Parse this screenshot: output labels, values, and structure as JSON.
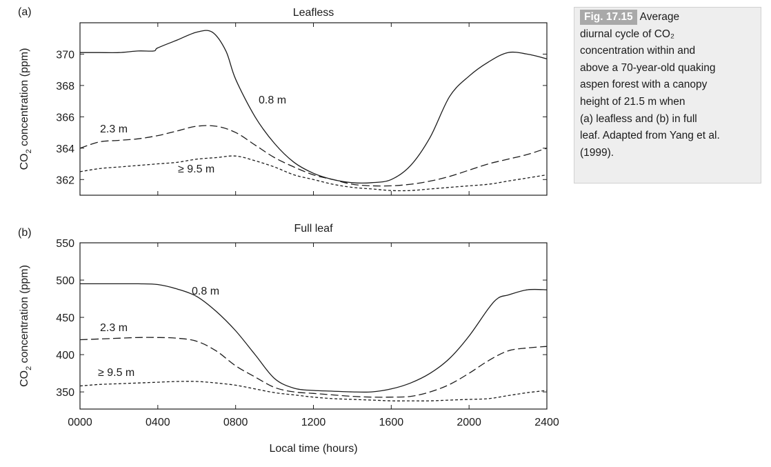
{
  "chart_data": [
    {
      "type": "line",
      "panel_label": "(a)",
      "title": "Leafless",
      "xlabel": "",
      "ylabel": "CO2 concentration (ppm)",
      "xlim": [
        0,
        2400
      ],
      "ylim": [
        361,
        372
      ],
      "yticks": [
        362,
        364,
        366,
        368,
        370
      ],
      "xticks": [
        0,
        400,
        800,
        1200,
        1600,
        2000,
        2400
      ],
      "series": [
        {
          "name": "0.8 m",
          "style": "solid",
          "x": [
            0,
            100,
            200,
            300,
            380,
            400,
            500,
            600,
            680,
            750,
            800,
            900,
            1000,
            1100,
            1200,
            1300,
            1400,
            1500,
            1600,
            1700,
            1800,
            1900,
            2000,
            2100,
            2200,
            2300,
            2400
          ],
          "y": [
            370.1,
            370.1,
            370.1,
            370.2,
            370.2,
            370.4,
            370.9,
            371.4,
            371.4,
            370.2,
            368.4,
            366.0,
            364.3,
            363.1,
            362.4,
            362.0,
            361.8,
            361.8,
            362.0,
            362.9,
            364.7,
            367.3,
            368.6,
            369.5,
            370.1,
            370.0,
            369.7
          ]
        },
        {
          "name": "2.3 m",
          "style": "dashed",
          "x": [
            0,
            100,
            200,
            300,
            400,
            500,
            600,
            700,
            800,
            900,
            1000,
            1100,
            1200,
            1300,
            1400,
            1500,
            1600,
            1700,
            1800,
            1900,
            2000,
            2100,
            2200,
            2300,
            2400
          ],
          "y": [
            364.0,
            364.4,
            364.5,
            364.6,
            364.8,
            365.1,
            365.4,
            365.4,
            365.0,
            364.2,
            363.4,
            362.8,
            362.3,
            362.0,
            361.7,
            361.6,
            361.6,
            361.7,
            361.9,
            362.2,
            362.6,
            363.0,
            363.3,
            363.6,
            364.0
          ]
        },
        {
          "name": "≥ 9.5 m",
          "style": "dotted",
          "x": [
            0,
            100,
            200,
            300,
            400,
            500,
            600,
            700,
            800,
            900,
            1000,
            1100,
            1200,
            1300,
            1400,
            1500,
            1600,
            1700,
            1800,
            1900,
            2000,
            2100,
            2200,
            2300,
            2400
          ],
          "y": [
            362.5,
            362.7,
            362.8,
            362.9,
            363.0,
            363.1,
            363.3,
            363.4,
            363.5,
            363.2,
            362.8,
            362.3,
            362.0,
            361.7,
            361.5,
            361.4,
            361.3,
            361.3,
            361.4,
            361.5,
            361.6,
            361.7,
            361.9,
            362.1,
            362.3
          ]
        }
      ]
    },
    {
      "type": "line",
      "panel_label": "(b)",
      "title": "Full leaf",
      "xlabel": "Local time (hours)",
      "ylabel": "CO2 concentration (ppm)",
      "xlim": [
        0,
        2400
      ],
      "ylim": [
        327,
        550
      ],
      "yticks": [
        350,
        400,
        450,
        500,
        550
      ],
      "xticks": [
        0,
        400,
        800,
        1200,
        1600,
        2000,
        2400
      ],
      "xtick_labels": [
        "0000",
        "0400",
        "0800",
        "1200",
        "1600",
        "2000",
        "2400"
      ],
      "series": [
        {
          "name": "0.8 m",
          "style": "solid",
          "x": [
            0,
            100,
            200,
            300,
            400,
            500,
            600,
            700,
            800,
            900,
            1000,
            1100,
            1200,
            1300,
            1400,
            1500,
            1600,
            1700,
            1800,
            1900,
            2000,
            2100,
            2150,
            2200,
            2300,
            2400
          ],
          "y": [
            495,
            495,
            495,
            495,
            494,
            488,
            478,
            458,
            432,
            400,
            368,
            355,
            352,
            351,
            350,
            350,
            354,
            362,
            375,
            395,
            425,
            462,
            476,
            480,
            487,
            487
          ]
        },
        {
          "name": "2.3 m",
          "style": "dashed",
          "x": [
            0,
            100,
            200,
            300,
            400,
            500,
            600,
            700,
            800,
            900,
            1000,
            1100,
            1200,
            1300,
            1400,
            1500,
            1600,
            1700,
            1800,
            1900,
            2000,
            2100,
            2200,
            2300,
            2400
          ],
          "y": [
            420,
            421,
            422,
            423,
            423,
            422,
            418,
            405,
            385,
            370,
            356,
            350,
            348,
            346,
            344,
            343,
            343,
            344,
            350,
            360,
            375,
            392,
            405,
            409,
            411
          ]
        },
        {
          "name": "≥ 9.5 m",
          "style": "dotted",
          "x": [
            0,
            100,
            200,
            300,
            400,
            500,
            600,
            700,
            800,
            900,
            1000,
            1100,
            1200,
            1300,
            1400,
            1500,
            1600,
            1700,
            1800,
            1900,
            2000,
            2100,
            2200,
            2300,
            2400
          ],
          "y": [
            358,
            360,
            361,
            362,
            363,
            364,
            364,
            362,
            359,
            354,
            349,
            346,
            343,
            341,
            340,
            339,
            338,
            338,
            338,
            339,
            340,
            341,
            345,
            349,
            352
          ]
        }
      ]
    }
  ],
  "caption": {
    "label": "Fig. 17.15",
    "lines": [
      "Average",
      "diurnal cycle of CO₂",
      "concentration within and",
      "above a 70-year-old quaking",
      "aspen forest with a canopy",
      "height of 21.5 m when",
      "(a) leafless and (b) in full",
      "leaf. Adapted from Yang et al.",
      "(1999)."
    ]
  },
  "colors": {
    "line": "#1a1a1a",
    "caption_background": "#eeeeee",
    "caption_label_background": "#a9a9a9",
    "caption_label_text": "#ffffff"
  }
}
